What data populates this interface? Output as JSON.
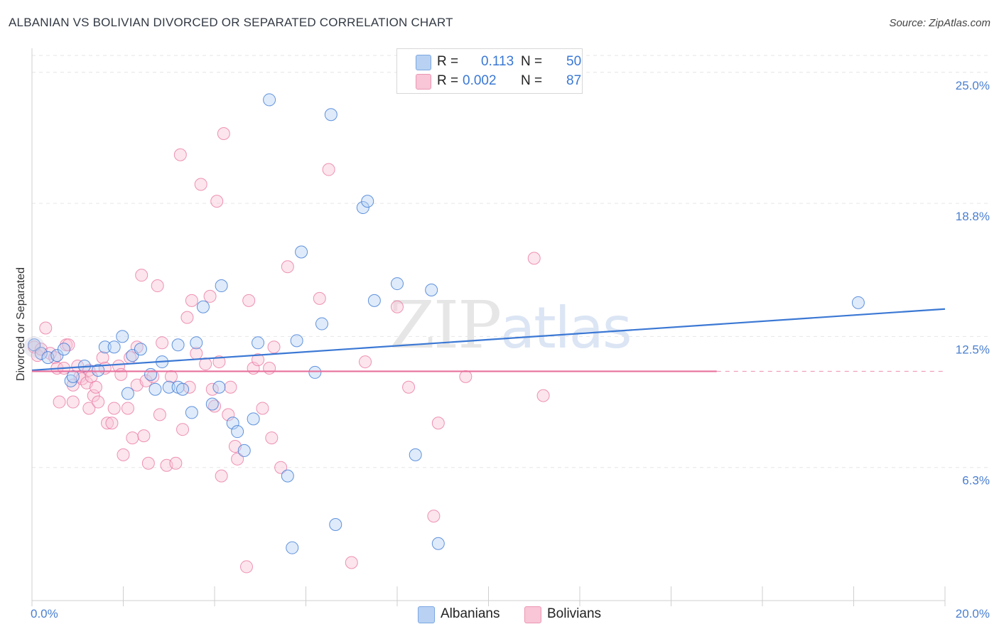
{
  "title": "ALBANIAN VS BOLIVIAN DIVORCED OR SEPARATED CORRELATION CHART",
  "source": "Source: ZipAtlas.com",
  "watermark": {
    "zip": "ZIP",
    "atlas": "atlas"
  },
  "colors": {
    "blue": "#3b78d4",
    "pink": "#e8709c",
    "blue_fill": "#b9d2f3",
    "pink_fill": "#f8c6d6",
    "grid": "#e6e6e6",
    "tick_text": "#4a7fd0"
  },
  "legend": {
    "rows": [
      {
        "series": "Albanians",
        "r_label": "R =",
        "r_value": "0.113",
        "n_label": "N =",
        "n_value": "50"
      },
      {
        "series": "Bolivians",
        "r_label": "R =",
        "r_value": "0.002",
        "n_label": "N =",
        "n_value": "87"
      }
    ]
  },
  "bottom_legend": [
    "Albanians",
    "Bolivians"
  ],
  "chart_data": {
    "type": "scatter",
    "title": "ALBANIAN VS BOLIVIAN DIVORCED OR SEPARATED CORRELATION CHART",
    "xlabel": "",
    "ylabel": "Divorced or Separated",
    "xlim": [
      0,
      20
    ],
    "ylim": [
      0,
      25.8
    ],
    "x_tick_labels": {
      "min": "0.0%",
      "max": "20.0%"
    },
    "y_ticks": [
      {
        "value": 25.0,
        "label": "25.0%"
      },
      {
        "value": 18.8,
        "label": "18.8%"
      },
      {
        "value": 12.5,
        "label": "12.5%"
      },
      {
        "value": 6.3,
        "label": "6.3%"
      }
    ],
    "series": [
      {
        "name": "Albanians",
        "color": "#3b78d4",
        "trend": {
          "x": [
            0,
            20
          ],
          "y": [
            10.9,
            13.8
          ]
        },
        "points": [
          [
            0.05,
            12.1
          ],
          [
            0.2,
            11.7
          ],
          [
            0.35,
            11.5
          ],
          [
            0.55,
            11.6
          ],
          [
            0.7,
            11.9
          ],
          [
            0.85,
            10.4
          ],
          [
            1.15,
            11.1
          ],
          [
            0.9,
            10.6
          ],
          [
            1.45,
            10.9
          ],
          [
            1.6,
            12.0
          ],
          [
            1.8,
            12.0
          ],
          [
            1.98,
            12.5
          ],
          [
            2.1,
            9.8
          ],
          [
            2.2,
            11.6
          ],
          [
            2.38,
            11.9
          ],
          [
            2.6,
            10.7
          ],
          [
            2.7,
            10.0
          ],
          [
            2.85,
            11.3
          ],
          [
            3.0,
            10.1
          ],
          [
            3.2,
            10.1
          ],
          [
            3.2,
            12.1
          ],
          [
            3.3,
            10.0
          ],
          [
            3.5,
            8.9
          ],
          [
            3.6,
            12.2
          ],
          [
            3.75,
            13.9
          ],
          [
            3.95,
            9.3
          ],
          [
            4.1,
            10.1
          ],
          [
            4.15,
            14.9
          ],
          [
            4.4,
            8.4
          ],
          [
            4.5,
            8.0
          ],
          [
            4.65,
            7.1
          ],
          [
            4.85,
            8.6
          ],
          [
            4.95,
            12.2
          ],
          [
            5.2,
            23.7
          ],
          [
            5.6,
            5.9
          ],
          [
            5.7,
            2.5
          ],
          [
            5.8,
            12.3
          ],
          [
            5.9,
            16.5
          ],
          [
            6.2,
            10.8
          ],
          [
            6.35,
            13.1
          ],
          [
            6.55,
            23.0
          ],
          [
            6.65,
            3.6
          ],
          [
            7.25,
            18.6
          ],
          [
            7.35,
            18.9
          ],
          [
            7.5,
            14.2
          ],
          [
            8.0,
            15.0
          ],
          [
            8.4,
            6.9
          ],
          [
            8.75,
            14.7
          ],
          [
            8.9,
            2.7
          ],
          [
            18.1,
            14.1
          ]
        ]
      },
      {
        "name": "Bolivians",
        "color": "#e8709c",
        "trend": {
          "x": [
            0,
            15
          ],
          "y": [
            10.85,
            10.85
          ],
          "dashed_extension_to": 20
        },
        "points": [
          [
            0.05,
            12.0
          ],
          [
            0.12,
            11.6
          ],
          [
            0.2,
            11.9
          ],
          [
            0.3,
            12.9
          ],
          [
            0.4,
            11.7
          ],
          [
            0.5,
            11.5
          ],
          [
            0.55,
            11.0
          ],
          [
            0.6,
            9.4
          ],
          [
            0.7,
            11.0
          ],
          [
            0.75,
            12.1
          ],
          [
            0.8,
            12.1
          ],
          [
            0.9,
            10.2
          ],
          [
            0.9,
            9.4
          ],
          [
            1.0,
            11.1
          ],
          [
            1.05,
            10.6
          ],
          [
            1.1,
            10.5
          ],
          [
            1.2,
            10.3
          ],
          [
            1.25,
            10.9
          ],
          [
            1.25,
            9.1
          ],
          [
            1.3,
            10.6
          ],
          [
            1.35,
            9.7
          ],
          [
            1.4,
            10.1
          ],
          [
            1.45,
            9.4
          ],
          [
            1.55,
            11.5
          ],
          [
            1.6,
            11.0
          ],
          [
            1.65,
            8.4
          ],
          [
            1.75,
            8.4
          ],
          [
            1.8,
            9.1
          ],
          [
            1.9,
            11.1
          ],
          [
            1.95,
            10.7
          ],
          [
            2.0,
            6.9
          ],
          [
            2.1,
            9.1
          ],
          [
            2.15,
            11.5
          ],
          [
            2.2,
            7.7
          ],
          [
            2.3,
            10.2
          ],
          [
            2.3,
            12.0
          ],
          [
            2.4,
            15.4
          ],
          [
            2.45,
            7.8
          ],
          [
            2.5,
            10.4
          ],
          [
            2.55,
            6.5
          ],
          [
            2.65,
            10.6
          ],
          [
            2.75,
            14.9
          ],
          [
            2.8,
            8.8
          ],
          [
            2.85,
            12.2
          ],
          [
            2.95,
            6.4
          ],
          [
            3.05,
            10.6
          ],
          [
            3.15,
            6.5
          ],
          [
            3.25,
            21.1
          ],
          [
            3.3,
            8.1
          ],
          [
            3.4,
            13.4
          ],
          [
            3.45,
            10.1
          ],
          [
            3.5,
            14.2
          ],
          [
            3.6,
            11.7
          ],
          [
            3.7,
            19.7
          ],
          [
            3.8,
            11.2
          ],
          [
            3.9,
            14.4
          ],
          [
            3.95,
            10.0
          ],
          [
            4.0,
            9.2
          ],
          [
            4.05,
            18.9
          ],
          [
            4.1,
            11.3
          ],
          [
            4.15,
            5.9
          ],
          [
            4.2,
            22.1
          ],
          [
            4.3,
            8.8
          ],
          [
            4.35,
            10.1
          ],
          [
            4.45,
            7.3
          ],
          [
            4.5,
            6.7
          ],
          [
            4.7,
            1.6
          ],
          [
            4.75,
            14.2
          ],
          [
            4.85,
            11.0
          ],
          [
            4.95,
            11.4
          ],
          [
            5.05,
            9.1
          ],
          [
            5.2,
            11.0
          ],
          [
            5.25,
            7.7
          ],
          [
            5.3,
            12.0
          ],
          [
            5.45,
            6.3
          ],
          [
            5.6,
            15.8
          ],
          [
            6.3,
            14.3
          ],
          [
            6.5,
            20.4
          ],
          [
            7.0,
            1.8
          ],
          [
            7.3,
            11.3
          ],
          [
            8.0,
            13.9
          ],
          [
            8.25,
            10.1
          ],
          [
            8.8,
            4.0
          ],
          [
            8.9,
            8.4
          ],
          [
            9.5,
            10.6
          ],
          [
            11.0,
            16.2
          ],
          [
            11.2,
            9.7
          ]
        ]
      }
    ]
  }
}
